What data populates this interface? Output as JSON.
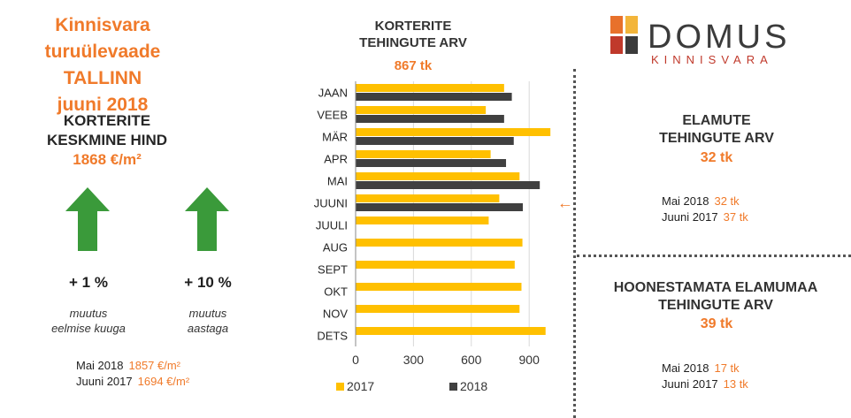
{
  "header": {
    "line1": "Kinnisvara turuülevaade",
    "line2": "TALLINN",
    "line3": "juuni 2018"
  },
  "price": {
    "title_line1": "KORTERITE",
    "title_line2": "KESKMINE HIND",
    "value": "1868 €/m²",
    "change_month": "+ 1 %",
    "change_month_label_line1": "muutus",
    "change_month_label_line2": "eelmise kuuga",
    "change_year": "+ 10 %",
    "change_year_label_line1": "muutus",
    "change_year_label_line2": "aastaga",
    "cmp1_label": "Mai 2018",
    "cmp1_value": "1857 €/m²",
    "cmp2_label": "Juuni 2017",
    "cmp2_value": "1694 €/m²",
    "arrow_color": "#3a9a3a"
  },
  "chart_header": {
    "line1": "KORTERITE",
    "line2": "TEHINGUTE ARV",
    "count": "867 tk",
    "marker": "←"
  },
  "logo": {
    "word": "DOMUS",
    "sub": "KINNISVARA",
    "colors": [
      "#e8712b",
      "#f3b53a",
      "#c0392b",
      "#3b3b3b"
    ]
  },
  "houses": {
    "title_line1": "ELAMUTE",
    "title_line2": "TEHINGUTE ARV",
    "value": "32 tk",
    "cmp1_label": "Mai 2018",
    "cmp1_value": "32 tk",
    "cmp2_label": "Juuni 2017",
    "cmp2_value": "37 tk"
  },
  "land": {
    "title_line1": "HOONESTAMATA ELAMUMAA",
    "title_line2": "TEHINGUTE ARV",
    "value": "39 tk",
    "cmp1_label": "Mai 2018",
    "cmp1_value": "17 tk",
    "cmp2_label": "Juuni 2017",
    "cmp2_value": "13 tk"
  },
  "chart_data": {
    "type": "bar",
    "orientation": "horizontal",
    "categories": [
      "JAAN",
      "VEEB",
      "MÄR",
      "APR",
      "MAI",
      "JUUNI",
      "JUULI",
      "AUG",
      "SEPT",
      "OKT",
      "NOV",
      "DETS"
    ],
    "series": [
      {
        "name": "2017",
        "color": "#ffc000",
        "values": [
          770,
          675,
          1010,
          700,
          850,
          745,
          690,
          865,
          825,
          860,
          850,
          985
        ]
      },
      {
        "name": "2018",
        "color": "#404040",
        "values": [
          810,
          770,
          820,
          780,
          955,
          867,
          null,
          null,
          null,
          null,
          null,
          null
        ]
      }
    ],
    "xticks": [
      0,
      300,
      600,
      900
    ],
    "xlim": [
      0,
      1000
    ],
    "grid": true,
    "legend": "bottom"
  }
}
